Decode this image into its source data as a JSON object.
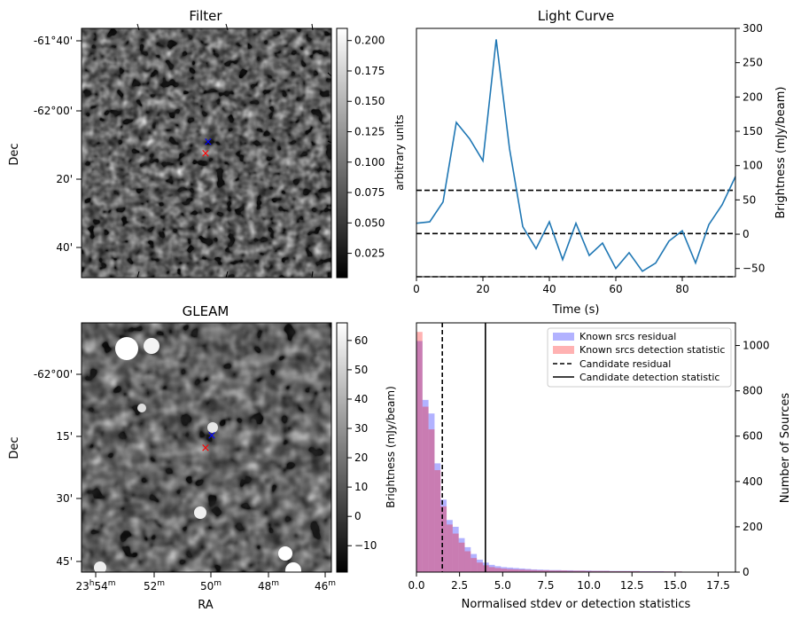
{
  "panels": {
    "filter": {
      "title": "Filter",
      "ylabel": "Dec",
      "yticks": [
        "-61°40'",
        "-62°00'",
        "20'",
        "40'"
      ],
      "colorbar": {
        "label": "arbitrary units",
        "ticks": [
          "0.025",
          "0.050",
          "0.075",
          "0.100",
          "0.125",
          "0.150",
          "0.175",
          "0.200"
        ],
        "range": [
          0.005,
          0.21
        ]
      },
      "markers": [
        {
          "symbol": "x",
          "color": "#0000ff"
        },
        {
          "symbol": "x",
          "color": "#ff0000"
        }
      ]
    },
    "gleam": {
      "title": "GLEAM",
      "ylabel": "Dec",
      "xlabel": "RA",
      "yticks": [
        "-62°00'",
        "15'",
        "30'",
        "45'"
      ],
      "xticks": [
        {
          "h": "23",
          "hs": "h",
          "m": "54",
          "ms": "m"
        },
        {
          "h": "",
          "hs": "",
          "m": "52",
          "ms": "m"
        },
        {
          "h": "",
          "hs": "",
          "m": "50",
          "ms": "m"
        },
        {
          "h": "",
          "hs": "",
          "m": "48",
          "ms": "m"
        },
        {
          "h": "",
          "hs": "",
          "m": "46",
          "ms": "m"
        }
      ],
      "colorbar": {
        "label": "Brightness (mJy/beam)",
        "ticks": [
          "−10",
          "0",
          "10",
          "20",
          "30",
          "40",
          "50",
          "60"
        ],
        "range": [
          -19,
          66
        ]
      },
      "markers": [
        {
          "symbol": "x",
          "color": "#0000ff"
        },
        {
          "symbol": "x",
          "color": "#ff0000"
        }
      ]
    }
  },
  "chart_data": [
    {
      "type": "line",
      "title": "Light Curve",
      "xlabel": "Time (s)",
      "ylabel": "Brightness (mJy/beam)",
      "xlim": [
        0,
        96
      ],
      "ylim": [
        -62,
        300
      ],
      "xticks": [
        "0",
        "20",
        "40",
        "60",
        "80"
      ],
      "yticks": [
        "−50",
        "0",
        "50",
        "100",
        "150",
        "200",
        "250",
        "300"
      ],
      "series": [
        {
          "color": "#1f77b4",
          "x": [
            0,
            4,
            8,
            12,
            16,
            20,
            24,
            28,
            32,
            36,
            40,
            44,
            48,
            52,
            56,
            60,
            64,
            68,
            72,
            76,
            80,
            84,
            88,
            92,
            96
          ],
          "y": [
            16,
            18,
            47,
            163,
            139,
            107,
            284,
            125,
            11,
            -21,
            18,
            -37,
            16,
            -31,
            -13,
            -50,
            -27,
            -54,
            -42,
            -10,
            5,
            -42,
            14,
            43,
            84
          ]
        }
      ],
      "hlines": [
        {
          "y": 64,
          "style": "dashed",
          "color": "#000000"
        },
        {
          "y": 1,
          "style": "dashed",
          "color": "#000000"
        },
        {
          "y": -62,
          "style": "dashed",
          "color": "#000000"
        }
      ]
    },
    {
      "type": "bar",
      "subtype": "histogram",
      "xlabel": "Normalised stdev or detection statistics",
      "ylabel": "Number of Sources",
      "xlim": [
        0,
        18.5
      ],
      "ylim": [
        0,
        1100
      ],
      "xticks": [
        "0.0",
        "2.5",
        "5.0",
        "7.5",
        "10.0",
        "12.5",
        "15.0",
        "17.5"
      ],
      "yticks": [
        "0",
        "200",
        "400",
        "600",
        "800",
        "1000"
      ],
      "bin_width": 0.35,
      "legend_position": "top-right",
      "series": [
        {
          "name": "Known srcs residual",
          "color": "#0000ff",
          "alpha": 0.3,
          "bin_starts": [
            0,
            0.35,
            0.7,
            1.05,
            1.4,
            1.75,
            2.1,
            2.45,
            2.8,
            3.15,
            3.5,
            3.85,
            4.2,
            4.55,
            4.9,
            5.25,
            5.6,
            5.95,
            6.3,
            6.65,
            7.0,
            7.35,
            7.7,
            8.05,
            8.4,
            8.75,
            9.1,
            9.45,
            9.8,
            10.15,
            10.5,
            10.85,
            11.2,
            11.55,
            11.9,
            12.25,
            12.6,
            12.95,
            13.3,
            13.65,
            14.0,
            14.35,
            14.7,
            15.05
          ],
          "values": [
            1020,
            760,
            700,
            480,
            320,
            230,
            200,
            150,
            110,
            80,
            55,
            42,
            32,
            26,
            22,
            20,
            18,
            16,
            14,
            12,
            11,
            10,
            9,
            9,
            8,
            8,
            7,
            7,
            7,
            6,
            6,
            6,
            5,
            5,
            5,
            5,
            5,
            4,
            4,
            4,
            4,
            3,
            3,
            3
          ]
        },
        {
          "name": "Known srcs detection statistic",
          "color": "#ff0000",
          "alpha": 0.3,
          "bin_starts": [
            0,
            0.35,
            0.7,
            1.05,
            1.4,
            1.75,
            2.1,
            2.45,
            2.8,
            3.15,
            3.5,
            3.85,
            4.2,
            4.55,
            4.9,
            5.25,
            5.6,
            5.95,
            6.3,
            6.65,
            7.0,
            7.35,
            7.7,
            8.05,
            8.4,
            8.75,
            9.1,
            9.45,
            9.8,
            10.15,
            10.5,
            10.85,
            11.2,
            11.55,
            11.9,
            12.25,
            12.6,
            12.95,
            13.3,
            13.65,
            14.0,
            14.35,
            14.7,
            15.05,
            15.4,
            15.75,
            16.1,
            16.45,
            16.8,
            17.15
          ],
          "values": [
            1060,
            730,
            630,
            450,
            290,
            210,
            170,
            130,
            92,
            62,
            42,
            30,
            22,
            18,
            15,
            13,
            12,
            11,
            10,
            9,
            8,
            8,
            7,
            7,
            7,
            6,
            6,
            6,
            5,
            5,
            5,
            5,
            4,
            4,
            4,
            4,
            4,
            3,
            3,
            3,
            3,
            3,
            3,
            3,
            2,
            2,
            2,
            2,
            2,
            2
          ]
        },
        {
          "name": "Candidate residual",
          "style": "dashed",
          "color": "#000000",
          "vline": 1.5
        },
        {
          "name": "Candidate detection statistic",
          "style": "solid",
          "color": "#000000",
          "vline": 4.0
        }
      ]
    }
  ]
}
